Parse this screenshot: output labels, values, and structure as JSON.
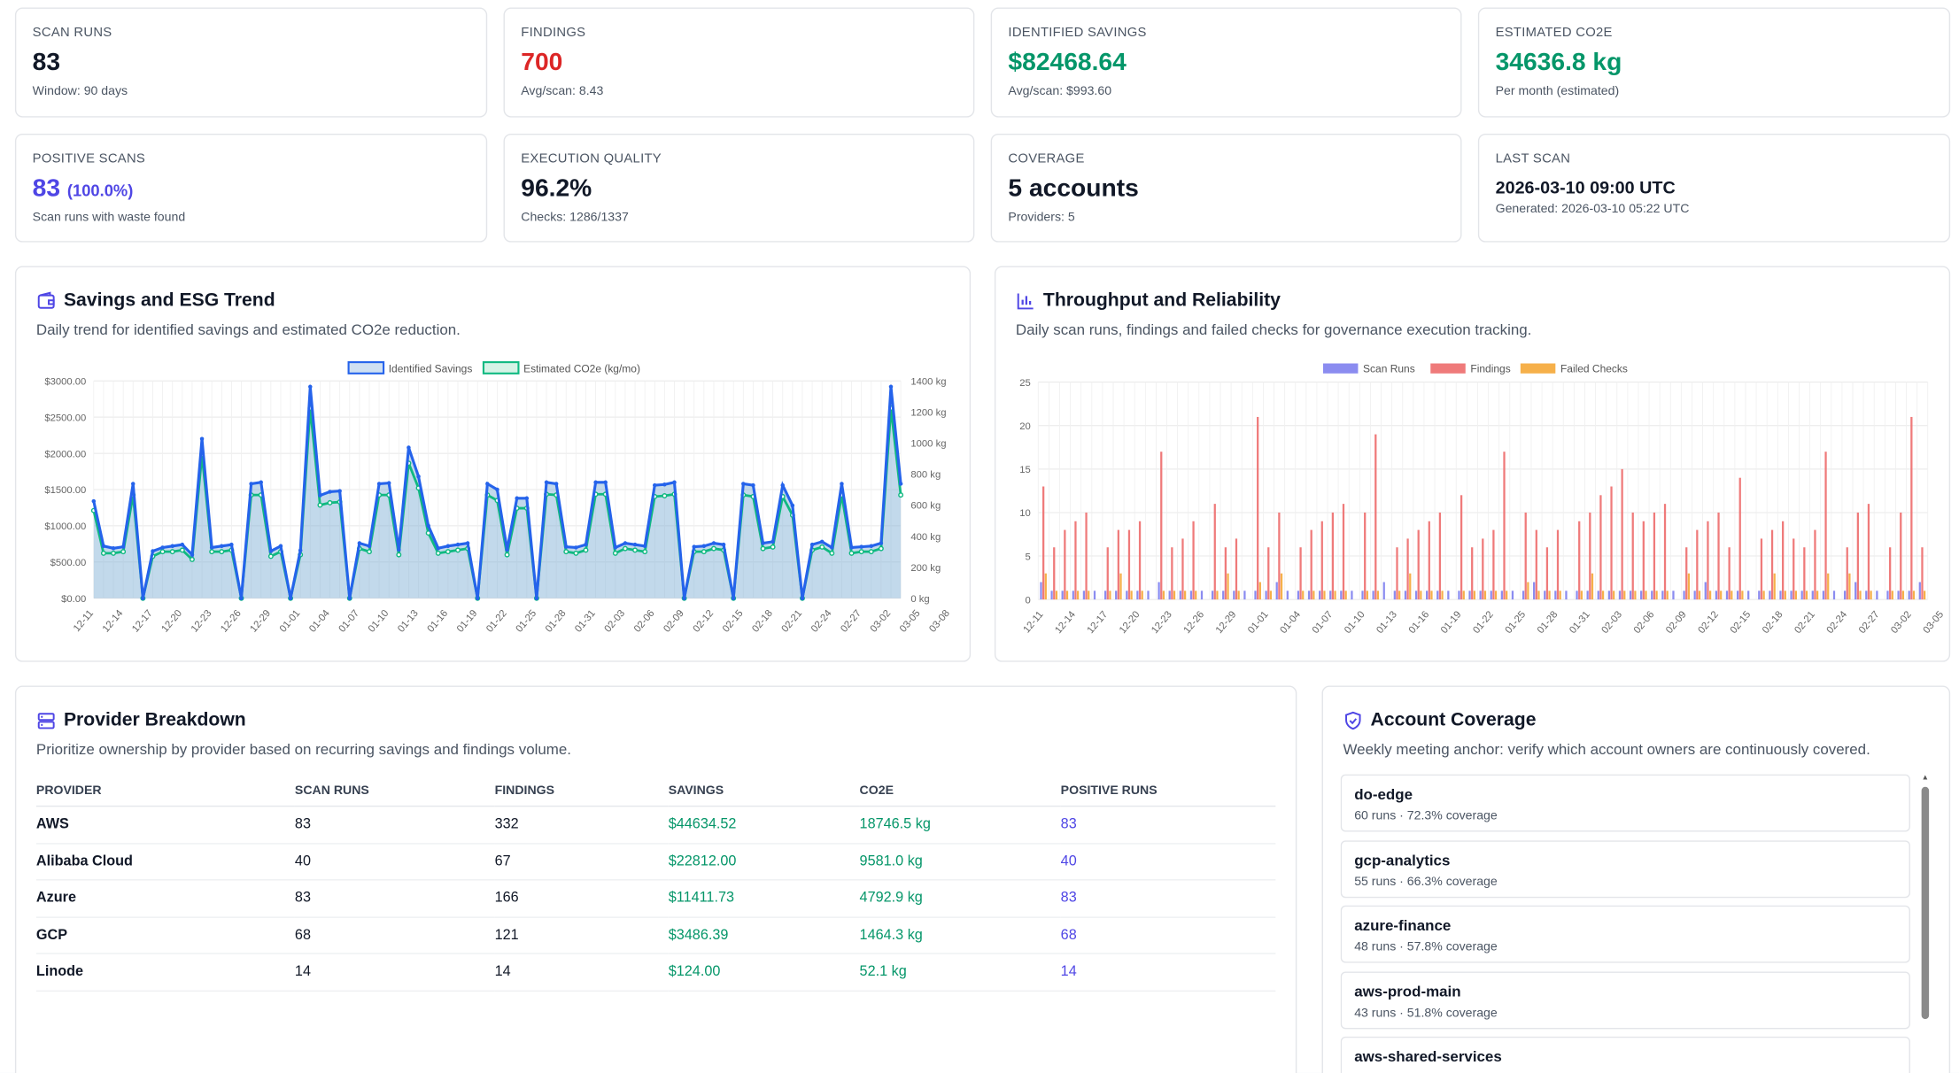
{
  "stats": [
    {
      "label": "SCAN RUNS",
      "value": "83",
      "sub": "Window: 90 days"
    },
    {
      "label": "FINDINGS",
      "value": "700",
      "sub": "Avg/scan: 8.43"
    },
    {
      "label": "IDENTIFIED SAVINGS",
      "value": "$82468.64",
      "sub": "Avg/scan: $993.60"
    },
    {
      "label": "ESTIMATED CO2E",
      "value": "34636.8 kg",
      "sub": "Per month (estimated)"
    },
    {
      "label": "POSITIVE SCANS",
      "value": "83",
      "value_extra": "(100.0%)",
      "sub": "Scan runs with waste found"
    },
    {
      "label": "EXECUTION QUALITY",
      "value": "96.2%",
      "sub": "Checks: 1286/1337"
    },
    {
      "label": "COVERAGE",
      "value": "5 accounts",
      "sub": "Providers: 5"
    },
    {
      "label": "LAST SCAN",
      "value": "2026-03-10 09:00 UTC",
      "sub": "Generated: 2026-03-10 05:22 UTC"
    }
  ],
  "colors": {
    "red": "#dc2626",
    "green": "#059669",
    "blue": "#4f46e5",
    "savings_line": "#2563eb",
    "co2_line": "#10b981"
  },
  "savings_panel": {
    "title": "Savings and ESG Trend",
    "subtitle": "Daily trend for identified savings and estimated CO2e reduction.",
    "icon": "wallet-icon"
  },
  "throughput_panel": {
    "title": "Throughput and Reliability",
    "subtitle": "Daily scan runs, findings and failed checks for governance execution tracking.",
    "icon": "bar-chart-icon"
  },
  "provider_panel": {
    "title": "Provider Breakdown",
    "subtitle": "Prioritize ownership by provider based on recurring savings and findings volume.",
    "icon": "server-icon",
    "columns": [
      "PROVIDER",
      "SCAN RUNS",
      "FINDINGS",
      "SAVINGS",
      "CO2E",
      "POSITIVE RUNS"
    ],
    "rows": [
      [
        "AWS",
        "83",
        "332",
        "$44634.52",
        "18746.5 kg",
        "83"
      ],
      [
        "Alibaba Cloud",
        "40",
        "67",
        "$22812.00",
        "9581.0 kg",
        "40"
      ],
      [
        "Azure",
        "83",
        "166",
        "$11411.73",
        "4792.9 kg",
        "83"
      ],
      [
        "GCP",
        "68",
        "121",
        "$3486.39",
        "1464.3 kg",
        "68"
      ],
      [
        "Linode",
        "14",
        "14",
        "$124.00",
        "52.1 kg",
        "14"
      ]
    ]
  },
  "account_panel": {
    "title": "Account Coverage",
    "subtitle": "Weekly meeting anchor: verify which account owners are continuously covered.",
    "icon": "shield-check-icon",
    "accounts": [
      {
        "name": "do-edge",
        "detail": "60 runs · 72.3% coverage"
      },
      {
        "name": "gcp-analytics",
        "detail": "55 runs · 66.3% coverage"
      },
      {
        "name": "azure-finance",
        "detail": "48 runs · 57.8% coverage"
      },
      {
        "name": "aws-prod-main",
        "detail": "43 runs · 51.8% coverage"
      },
      {
        "name": "aws-shared-services",
        "detail": ""
      }
    ]
  },
  "chart_data": [
    {
      "type": "line",
      "title": "",
      "series": [
        {
          "name": "Identified Savings",
          "axis": "left",
          "values": [
            1340,
            720,
            690,
            710,
            1580,
            0,
            650,
            700,
            720,
            740,
            600,
            2200,
            700,
            720,
            740,
            0,
            1580,
            1600,
            650,
            720,
            0,
            660,
            2920,
            1420,
            1470,
            1480,
            0,
            760,
            720,
            1580,
            1590,
            670,
            2080,
            1680,
            1000,
            690,
            720,
            740,
            760,
            0,
            1580,
            1500,
            670,
            1380,
            1380,
            0,
            1600,
            1580,
            710,
            700,
            740,
            1600,
            1600,
            700,
            760,
            740,
            720,
            1560,
            1570,
            1600,
            0,
            710,
            720,
            760,
            740,
            0,
            1580,
            1560,
            760,
            780,
            1560,
            1280,
            0,
            740,
            780,
            700,
            1580,
            700,
            710,
            720,
            760,
            2920,
            1580
          ]
        },
        {
          "name": "Estimated CO2e (kg/mo)",
          "axis": "right",
          "values": [
            565,
            290,
            290,
            300,
            665,
            0,
            270,
            300,
            300,
            310,
            250,
            925,
            300,
            300,
            310,
            0,
            665,
            665,
            270,
            300,
            0,
            280,
            1225,
            600,
            615,
            620,
            0,
            320,
            300,
            665,
            665,
            280,
            870,
            710,
            420,
            290,
            300,
            310,
            320,
            0,
            665,
            630,
            280,
            580,
            580,
            0,
            670,
            665,
            300,
            290,
            310,
            670,
            670,
            290,
            320,
            310,
            300,
            655,
            660,
            670,
            0,
            300,
            300,
            320,
            310,
            0,
            665,
            655,
            320,
            330,
            655,
            535,
            0,
            310,
            330,
            290,
            665,
            290,
            300,
            300,
            320,
            1225,
            665
          ]
        }
      ],
      "x_tick_labels": [
        "12-11",
        "12-14",
        "12-17",
        "12-20",
        "12-23",
        "12-26",
        "12-29",
        "01-01",
        "01-04",
        "01-07",
        "01-10",
        "01-13",
        "01-16",
        "01-19",
        "01-22",
        "01-25",
        "01-28",
        "01-31",
        "02-03",
        "02-06",
        "02-09",
        "02-12",
        "02-15",
        "02-18",
        "02-21",
        "02-24",
        "02-27",
        "03-02",
        "03-05",
        "03-08"
      ],
      "y_left_ticks": [
        "$0.00",
        "$500.00",
        "$1000.00",
        "$1500.00",
        "$2000.00",
        "$2500.00",
        "$3000.00"
      ],
      "y_right_ticks": [
        "0 kg",
        "200 kg",
        "400 kg",
        "600 kg",
        "800 kg",
        "1000 kg",
        "1200 kg",
        "1400 kg"
      ],
      "ylim_left": [
        0,
        3000
      ],
      "ylim_right": [
        0,
        1400
      ],
      "legend": "top",
      "grid": true
    },
    {
      "type": "bar",
      "title": "",
      "series": [
        {
          "name": "Scan Runs",
          "color": "#8b8cf0",
          "values": [
            2,
            1,
            1,
            1,
            1,
            1,
            1,
            1,
            1,
            1,
            1,
            2,
            1,
            1,
            1,
            1,
            1,
            1,
            1,
            1,
            1,
            1,
            2,
            1,
            1,
            1,
            1,
            1,
            1,
            1,
            1,
            1,
            2,
            1,
            1,
            1,
            1,
            1,
            1,
            1,
            1,
            1,
            1,
            1,
            1,
            1,
            2,
            1,
            1,
            1,
            1,
            1,
            1,
            1,
            1,
            1,
            1,
            1,
            1,
            1,
            1,
            1,
            2,
            1,
            1,
            1,
            1,
            1,
            1,
            1,
            1,
            1,
            1,
            1,
            1,
            1,
            2,
            1,
            1,
            1,
            1,
            1,
            2
          ]
        },
        {
          "name": "Findings",
          "color": "#ef7a7a",
          "values": [
            13,
            6,
            8,
            9,
            10,
            0,
            6,
            8,
            8,
            9,
            0,
            17,
            6,
            7,
            9,
            0,
            11,
            6,
            7,
            0,
            21,
            6,
            10,
            0,
            6,
            8,
            9,
            10,
            11,
            0,
            10,
            19,
            0,
            6,
            7,
            8,
            9,
            10,
            0,
            12,
            6,
            7,
            8,
            17,
            0,
            10,
            8,
            6,
            8,
            0,
            9,
            10,
            12,
            13,
            15,
            10,
            9,
            10,
            11,
            0,
            6,
            8,
            9,
            10,
            6,
            14,
            0,
            7,
            8,
            9,
            7,
            6,
            8,
            17,
            0,
            6,
            10,
            11,
            0,
            6,
            10,
            21,
            6
          ]
        },
        {
          "name": "Failed Checks",
          "color": "#f6b04a",
          "values": [
            3,
            1,
            1,
            1,
            1,
            0,
            1,
            3,
            1,
            1,
            0,
            1,
            1,
            1,
            1,
            0,
            1,
            3,
            1,
            0,
            2,
            1,
            3,
            0,
            1,
            1,
            1,
            1,
            1,
            0,
            1,
            1,
            0,
            1,
            3,
            1,
            1,
            1,
            0,
            1,
            1,
            1,
            1,
            1,
            0,
            2,
            1,
            1,
            1,
            0,
            1,
            3,
            1,
            1,
            1,
            1,
            1,
            1,
            1,
            0,
            3,
            1,
            1,
            1,
            1,
            1,
            0,
            1,
            3,
            1,
            1,
            1,
            1,
            3,
            0,
            3,
            1,
            1,
            0,
            1,
            1,
            1,
            1
          ]
        }
      ],
      "x_tick_labels": [
        "12-11",
        "12-14",
        "12-17",
        "12-20",
        "12-23",
        "12-26",
        "12-29",
        "01-01",
        "01-04",
        "01-07",
        "01-10",
        "01-13",
        "01-16",
        "01-19",
        "01-22",
        "01-25",
        "01-28",
        "01-31",
        "02-03",
        "02-06",
        "02-09",
        "02-12",
        "02-15",
        "02-18",
        "02-21",
        "02-24",
        "02-27",
        "03-02",
        "03-05",
        "03-08"
      ],
      "y_ticks": [
        "0",
        "5",
        "10",
        "15",
        "20",
        "25"
      ],
      "ylim": [
        0,
        25
      ],
      "legend": "top",
      "grid": true
    }
  ]
}
